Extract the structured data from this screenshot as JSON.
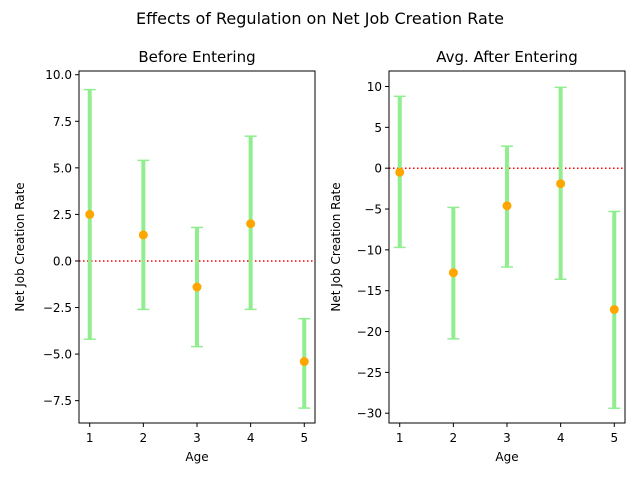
{
  "figure": {
    "suptitle": "Effects of Regulation on Net Job Creation Rate"
  },
  "chart_data": [
    {
      "type": "errorbar",
      "title": "Before Entering",
      "xlabel": "Age",
      "ylabel": "Net Job Creation Rate",
      "x": [
        1,
        2,
        3,
        4,
        5
      ],
      "y": [
        2.5,
        1.4,
        -1.4,
        2.0,
        -5.4
      ],
      "y_lower": [
        -4.2,
        -2.6,
        -4.6,
        -2.6,
        -7.9
      ],
      "y_upper": [
        9.2,
        5.4,
        1.8,
        6.7,
        -3.1
      ],
      "xlim": [
        0.8,
        5.2
      ],
      "ylim": [
        -8.7,
        10.2
      ],
      "xticks": [
        1,
        2,
        3,
        4,
        5
      ],
      "xtick_labels": [
        "1",
        "2",
        "3",
        "4",
        "5"
      ],
      "yticks": [
        -7.5,
        -5.0,
        -2.5,
        0.0,
        2.5,
        5.0,
        7.5,
        10.0
      ],
      "ytick_labels": [
        "−7.5",
        "−5.0",
        "−2.5",
        "0.0",
        "2.5",
        "5.0",
        "7.5",
        "10.0"
      ],
      "reference_line": {
        "y": 0,
        "style": "dotted",
        "color": "#ff0000"
      },
      "marker_color": "#ffa500",
      "errorbar_color": "#90ee90"
    },
    {
      "type": "errorbar",
      "title": "Avg. After Entering",
      "xlabel": "Age",
      "ylabel": "Net Job Creation Rate",
      "x": [
        1,
        2,
        3,
        4,
        5
      ],
      "y": [
        -0.5,
        -12.8,
        -4.6,
        -1.9,
        -17.3
      ],
      "y_lower": [
        -9.7,
        -20.9,
        -12.1,
        -13.6,
        -29.4
      ],
      "y_upper": [
        8.8,
        -4.8,
        2.7,
        9.9,
        -5.3
      ],
      "xlim": [
        0.8,
        5.2
      ],
      "ylim": [
        -31.2,
        11.9
      ],
      "xticks": [
        1,
        2,
        3,
        4,
        5
      ],
      "xtick_labels": [
        "1",
        "2",
        "3",
        "4",
        "5"
      ],
      "yticks": [
        -30,
        -25,
        -20,
        -15,
        -10,
        -5,
        0,
        5,
        10
      ],
      "ytick_labels": [
        "−30",
        "−25",
        "−20",
        "−15",
        "−10",
        "−5",
        "0",
        "5",
        "10"
      ],
      "reference_line": {
        "y": 0,
        "style": "dotted",
        "color": "#ff0000"
      },
      "marker_color": "#ffa500",
      "errorbar_color": "#90ee90"
    }
  ]
}
